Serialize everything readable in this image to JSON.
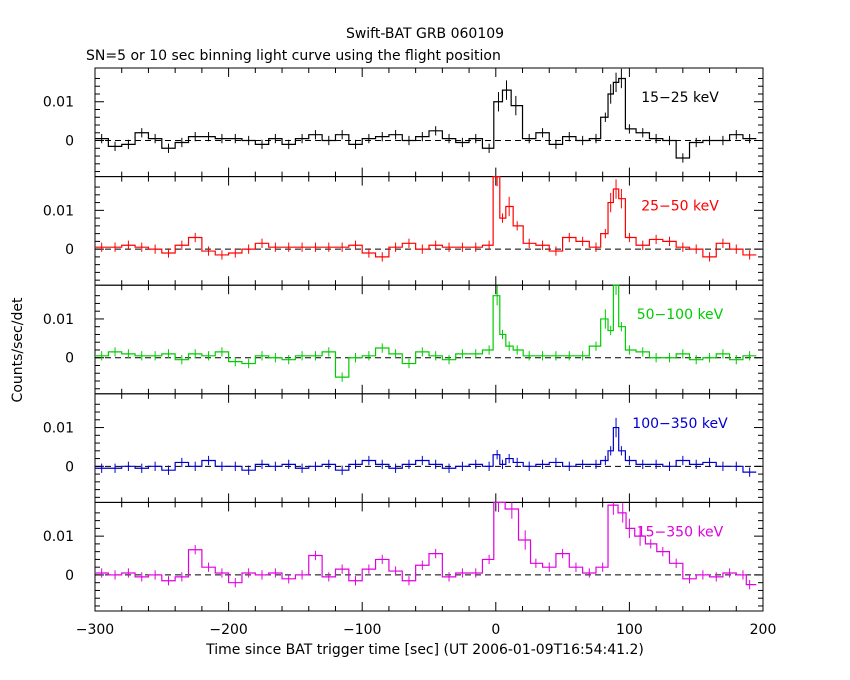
{
  "chart_data": {
    "type": "line",
    "title": "Swift-BAT GRB 060109",
    "subtitle": "SN=5 or 10 sec binning light curve using the flight position",
    "xlabel": "Time since BAT trigger time [sec] (UT 2006-01-09T16:54:41.2)",
    "ylabel": "Counts/sec/det",
    "xlim": [
      -300,
      200
    ],
    "ylim": [
      -0.0093,
      0.0187
    ],
    "x_ticks": [
      "−300",
      "−200",
      "−100",
      "0",
      "100",
      "200"
    ],
    "y_ticks": [
      "0",
      "0.01"
    ],
    "panels": [
      {
        "name": "15−25 keV",
        "color": "#000000",
        "values": [
          [
            -295,
            0.0005
          ],
          [
            -285,
            -0.0015
          ],
          [
            -275,
            -0.001
          ],
          [
            -265,
            0.002
          ],
          [
            -255,
            0.0005
          ],
          [
            -245,
            -0.002
          ],
          [
            -235,
            -0.0005
          ],
          [
            -225,
            0.001
          ],
          [
            -215,
            0.001
          ],
          [
            -205,
            0.0005
          ],
          [
            -195,
            0.0005
          ],
          [
            -185,
            0.0
          ],
          [
            -175,
            -0.001
          ],
          [
            -165,
            0.0005
          ],
          [
            -155,
            -0.001
          ],
          [
            -145,
            0.0005
          ],
          [
            -135,
            0.0015
          ],
          [
            -125,
            0.0
          ],
          [
            -115,
            0.0015
          ],
          [
            -105,
            -0.001
          ],
          [
            -95,
            0.0005
          ],
          [
            -85,
            0.001
          ],
          [
            -75,
            0.0015
          ],
          [
            -65,
            0.0
          ],
          [
            -55,
            0.001
          ],
          [
            -45,
            0.0025
          ],
          [
            -35,
            0.0005
          ],
          [
            -25,
            -0.0005
          ],
          [
            -15,
            0.0005
          ],
          [
            -5,
            -0.002
          ],
          [
            2,
            0.01
          ],
          [
            8,
            0.013
          ],
          [
            15,
            0.009
          ],
          [
            25,
            0.0005
          ],
          [
            35,
            0.002
          ],
          [
            45,
            -0.001
          ],
          [
            55,
            0.001
          ],
          [
            65,
            0.0
          ],
          [
            75,
            0.0005
          ],
          [
            82,
            0.006
          ],
          [
            86,
            0.012
          ],
          [
            90,
            0.015
          ],
          [
            94,
            0.016
          ],
          [
            100,
            0.003
          ],
          [
            110,
            0.002
          ],
          [
            120,
            0.0005
          ],
          [
            130,
            0.0
          ],
          [
            140,
            -0.0045
          ],
          [
            150,
            -0.0005
          ],
          [
            160,
            0.0
          ],
          [
            170,
            0.0
          ],
          [
            180,
            0.0015
          ],
          [
            190,
            0.0005
          ]
        ]
      },
      {
        "name": "25−50 keV",
        "color": "#ff0000",
        "values": [
          [
            -295,
            0.0005
          ],
          [
            -285,
            0.0005
          ],
          [
            -275,
            0.001
          ],
          [
            -265,
            0.0005
          ],
          [
            -255,
            0.0
          ],
          [
            -245,
            -0.001
          ],
          [
            -235,
            0.001
          ],
          [
            -225,
            0.003
          ],
          [
            -215,
            -0.0005
          ],
          [
            -205,
            -0.0015
          ],
          [
            -195,
            -0.001
          ],
          [
            -185,
            0.0
          ],
          [
            -175,
            0.0015
          ],
          [
            -165,
            0.0005
          ],
          [
            -155,
            0.0005
          ],
          [
            -145,
            0.0005
          ],
          [
            -135,
            0.0005
          ],
          [
            -125,
            0.0005
          ],
          [
            -115,
            0.0005
          ],
          [
            -105,
            0.001
          ],
          [
            -95,
            -0.001
          ],
          [
            -85,
            -0.002
          ],
          [
            -75,
            0.0005
          ],
          [
            -65,
            0.0015
          ],
          [
            -55,
            0.0
          ],
          [
            -45,
            0.001
          ],
          [
            -35,
            0.0005
          ],
          [
            -25,
            0.0005
          ],
          [
            -15,
            0.0005
          ],
          [
            -5,
            0.001
          ],
          [
            1,
            0.019
          ],
          [
            5,
            0.008
          ],
          [
            10,
            0.011
          ],
          [
            16,
            0.006
          ],
          [
            25,
            0.0015
          ],
          [
            35,
            0.001
          ],
          [
            45,
            -0.0005
          ],
          [
            55,
            0.003
          ],
          [
            65,
            0.002
          ],
          [
            75,
            0.0005
          ],
          [
            82,
            0.004
          ],
          [
            86,
            0.012
          ],
          [
            90,
            0.0155
          ],
          [
            94,
            0.013
          ],
          [
            100,
            0.003
          ],
          [
            110,
            0.001
          ],
          [
            120,
            0.0025
          ],
          [
            130,
            0.002
          ],
          [
            140,
            0.0005
          ],
          [
            150,
            0.0
          ],
          [
            160,
            -0.002
          ],
          [
            170,
            0.0015
          ],
          [
            180,
            0.0
          ],
          [
            190,
            -0.0015
          ]
        ]
      },
      {
        "name": "50−100 keV",
        "color": "#00cc00",
        "values": [
          [
            -295,
            0.0005
          ],
          [
            -285,
            0.0015
          ],
          [
            -275,
            0.001
          ],
          [
            -265,
            0.0005
          ],
          [
            -255,
            0.0005
          ],
          [
            -245,
            0.001
          ],
          [
            -235,
            -0.0005
          ],
          [
            -225,
            0.001
          ],
          [
            -215,
            0.0005
          ],
          [
            -205,
            0.0015
          ],
          [
            -195,
            -0.001
          ],
          [
            -185,
            -0.0015
          ],
          [
            -175,
            0.0005
          ],
          [
            -165,
            0.0
          ],
          [
            -155,
            -0.0005
          ],
          [
            -145,
            0.0005
          ],
          [
            -135,
            0.0005
          ],
          [
            -125,
            0.0015
          ],
          [
            -115,
            -0.005
          ],
          [
            -105,
            0.0
          ],
          [
            -95,
            0.0005
          ],
          [
            -85,
            0.0025
          ],
          [
            -75,
            0.001
          ],
          [
            -65,
            -0.0015
          ],
          [
            -55,
            0.0015
          ],
          [
            -45,
            0.0005
          ],
          [
            -35,
            -0.0005
          ],
          [
            -25,
            0.001
          ],
          [
            -15,
            0.001
          ],
          [
            -5,
            0.002
          ],
          [
            1,
            0.016
          ],
          [
            5,
            0.006
          ],
          [
            10,
            0.003
          ],
          [
            16,
            0.002
          ],
          [
            25,
            0.0005
          ],
          [
            35,
            0.0005
          ],
          [
            45,
            0.0005
          ],
          [
            55,
            0.0005
          ],
          [
            65,
            0.0005
          ],
          [
            75,
            0.003
          ],
          [
            82,
            0.01
          ],
          [
            86,
            0.007
          ],
          [
            90,
            0.019
          ],
          [
            94,
            0.008
          ],
          [
            100,
            0.002
          ],
          [
            110,
            0.0015
          ],
          [
            120,
            0.0
          ],
          [
            130,
            0.0
          ],
          [
            140,
            0.001
          ],
          [
            150,
            -0.0005
          ],
          [
            160,
            0.0
          ],
          [
            170,
            0.001
          ],
          [
            180,
            -0.0005
          ],
          [
            190,
            0.0005
          ]
        ]
      },
      {
        "name": "100−350 keV",
        "color": "#0000cc",
        "values": [
          [
            -295,
            -0.0005
          ],
          [
            -285,
            -0.0005
          ],
          [
            -275,
            0.0
          ],
          [
            -265,
            -0.0005
          ],
          [
            -255,
            0.0
          ],
          [
            -245,
            -0.001
          ],
          [
            -235,
            0.001
          ],
          [
            -225,
            0.0
          ],
          [
            -215,
            0.0015
          ],
          [
            -205,
            0.0
          ],
          [
            -195,
            0.0
          ],
          [
            -185,
            -0.001
          ],
          [
            -175,
            0.0005
          ],
          [
            -165,
            0.0
          ],
          [
            -155,
            0.0005
          ],
          [
            -145,
            -0.0005
          ],
          [
            -135,
            0.0
          ],
          [
            -125,
            0.0005
          ],
          [
            -115,
            -0.001
          ],
          [
            -105,
            0.0005
          ],
          [
            -95,
            0.0015
          ],
          [
            -85,
            0.0005
          ],
          [
            -75,
            -0.0005
          ],
          [
            -65,
            0.0005
          ],
          [
            -55,
            0.0015
          ],
          [
            -45,
            0.0005
          ],
          [
            -35,
            -0.0005
          ],
          [
            -25,
            0.0
          ],
          [
            -15,
            0.0005
          ],
          [
            -5,
            0.0
          ],
          [
            1,
            0.003
          ],
          [
            5,
            0.0005
          ],
          [
            10,
            0.002
          ],
          [
            16,
            0.001
          ],
          [
            25,
            0.0
          ],
          [
            35,
            0.0005
          ],
          [
            45,
            0.001
          ],
          [
            55,
            0.0
          ],
          [
            65,
            0.0005
          ],
          [
            75,
            0.0005
          ],
          [
            82,
            0.0015
          ],
          [
            86,
            0.004
          ],
          [
            90,
            0.01
          ],
          [
            94,
            0.004
          ],
          [
            100,
            0.0015
          ],
          [
            110,
            0.0005
          ],
          [
            120,
            0.0005
          ],
          [
            130,
            0.0
          ],
          [
            140,
            0.0015
          ],
          [
            150,
            0.0005
          ],
          [
            160,
            0.001
          ],
          [
            170,
            0.0
          ],
          [
            180,
            0.0
          ],
          [
            190,
            -0.0015
          ]
        ]
      },
      {
        "name": "15−350 keV",
        "color": "#e000e0",
        "values": [
          [
            -295,
            0.0005
          ],
          [
            -285,
            0.0
          ],
          [
            -275,
            0.0005
          ],
          [
            -265,
            -0.0005
          ],
          [
            -255,
            0.0
          ],
          [
            -245,
            -0.0015
          ],
          [
            -235,
            -0.0005
          ],
          [
            -225,
            0.0065
          ],
          [
            -215,
            0.002
          ],
          [
            -205,
            0.0005
          ],
          [
            -195,
            -0.002
          ],
          [
            -185,
            0.0005
          ],
          [
            -175,
            0.0
          ],
          [
            -165,
            0.0005
          ],
          [
            -155,
            -0.001
          ],
          [
            -145,
            0.0
          ],
          [
            -135,
            0.005
          ],
          [
            -125,
            -0.0005
          ],
          [
            -115,
            0.0015
          ],
          [
            -105,
            -0.0015
          ],
          [
            -95,
            0.0015
          ],
          [
            -85,
            0.004
          ],
          [
            -75,
            0.001
          ],
          [
            -65,
            -0.0015
          ],
          [
            -55,
            0.0025
          ],
          [
            -45,
            0.0055
          ],
          [
            -35,
            -0.0005
          ],
          [
            -25,
            0.0005
          ],
          [
            -15,
            0.0005
          ],
          [
            -5,
            0.004
          ],
          [
            2,
            0.019
          ],
          [
            12,
            0.017
          ],
          [
            22,
            0.009
          ],
          [
            30,
            0.003
          ],
          [
            40,
            0.002
          ],
          [
            50,
            0.0055
          ],
          [
            60,
            0.002
          ],
          [
            70,
            0.0005
          ],
          [
            80,
            0.002
          ],
          [
            88,
            0.018
          ],
          [
            95,
            0.016
          ],
          [
            100,
            0.012
          ],
          [
            108,
            0.01
          ],
          [
            116,
            0.008
          ],
          [
            125,
            0.006
          ],
          [
            135,
            0.003
          ],
          [
            145,
            -0.001
          ],
          [
            155,
            0.0
          ],
          [
            165,
            -0.0005
          ],
          [
            175,
            0.0005
          ],
          [
            185,
            0.0
          ],
          [
            190,
            -0.0025
          ]
        ]
      }
    ]
  }
}
